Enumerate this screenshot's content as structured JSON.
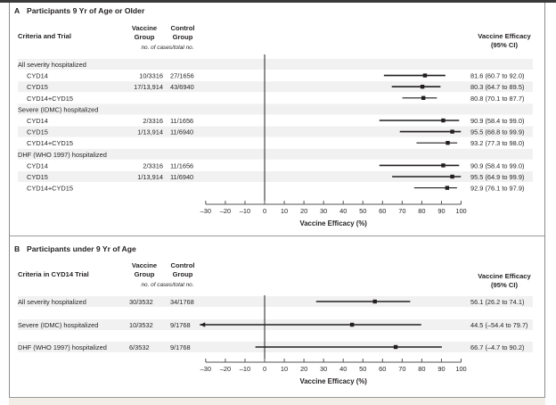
{
  "panel_a": {
    "letter": "A",
    "title": "Participants 9 Yr of Age or Older",
    "col_criteria": "Criteria and Trial",
    "col_vaccine": [
      "Vaccine",
      "Group"
    ],
    "col_control": [
      "Control",
      "Group"
    ],
    "col_subheader": "no. of cases/total no.",
    "col_efficacy": [
      "Vaccine Efficacy",
      "(95% CI)"
    ],
    "axis_title": "Vaccine Efficacy (%)"
  },
  "panel_b": {
    "letter": "B",
    "title": "Participants under 9 Yr of Age",
    "col_criteria": "Criteria in CYD14 Trial",
    "col_vaccine": [
      "Vaccine",
      "Group"
    ],
    "col_control": [
      "Control",
      "Group"
    ],
    "col_subheader": "no. of cases/total no.",
    "col_efficacy": [
      "Vaccine Efficacy",
      "(95% CI)"
    ],
    "axis_title": "Vaccine Efficacy (%)"
  },
  "chart_data": [
    {
      "type": "forest",
      "title": "A  Participants 9 Yr of Age or Older",
      "xlabel": "Vaccine Efficacy (%)",
      "xlim": [
        -30,
        100
      ],
      "xticks": [
        -30,
        -20,
        -10,
        0,
        10,
        20,
        30,
        40,
        50,
        60,
        70,
        80,
        90,
        100
      ],
      "reference_line": 0,
      "rows": [
        {
          "label": "All severity hospitalized",
          "group": true,
          "shaded": true
        },
        {
          "label": "CYD14",
          "vaccine": "10/3316",
          "control": "27/1656",
          "estimate": 81.6,
          "lower": 60.7,
          "upper": 92.0,
          "text": "81.6 (60.7 to 92.0)",
          "shaded": false
        },
        {
          "label": "CYD15",
          "vaccine": "17/13,914",
          "control": "43/6940",
          "estimate": 80.3,
          "lower": 64.7,
          "upper": 89.5,
          "text": "80.3 (64.7 to 89.5)",
          "shaded": true
        },
        {
          "label": "CYD14+CYD15",
          "vaccine": "",
          "control": "",
          "estimate": 80.8,
          "lower": 70.1,
          "upper": 87.7,
          "text": "80.8 (70.1 to 87.7)",
          "shaded": false
        },
        {
          "label": "Severe (IDMC) hospitalized",
          "group": true,
          "shaded": true
        },
        {
          "label": "CYD14",
          "vaccine": "2/3316",
          "control": "11/1656",
          "estimate": 90.9,
          "lower": 58.4,
          "upper": 99.0,
          "text": "90.9 (58.4 to 99.0)",
          "shaded": false
        },
        {
          "label": "CYD15",
          "vaccine": "1/13,914",
          "control": "11/6940",
          "estimate": 95.5,
          "lower": 68.8,
          "upper": 99.9,
          "text": "95.5 (68.8 to 99.9)",
          "shaded": true
        },
        {
          "label": "CYD14+CYD15",
          "vaccine": "",
          "control": "",
          "estimate": 93.2,
          "lower": 77.3,
          "upper": 98.0,
          "text": "93.2 (77.3 to 98.0)",
          "shaded": false
        },
        {
          "label": "DHF (WHO 1997) hospitalized",
          "group": true,
          "shaded": true
        },
        {
          "label": "CYD14",
          "vaccine": "2/3316",
          "control": "11/1656",
          "estimate": 90.9,
          "lower": 58.4,
          "upper": 99.0,
          "text": "90.9 (58.4 to 99.0)",
          "shaded": false
        },
        {
          "label": "CYD15",
          "vaccine": "1/13,914",
          "control": "11/6940",
          "estimate": 95.5,
          "lower": 64.9,
          "upper": 99.9,
          "text": "95.5 (64.9 to 99.9)",
          "shaded": true
        },
        {
          "label": "CYD14+CYD15",
          "vaccine": "",
          "control": "",
          "estimate": 92.9,
          "lower": 76.1,
          "upper": 97.9,
          "text": "92.9 (76.1 to 97.9)",
          "shaded": false
        }
      ]
    },
    {
      "type": "forest",
      "title": "B  Participants under 9 Yr of Age",
      "xlabel": "Vaccine Efficacy (%)",
      "xlim": [
        -30,
        100
      ],
      "xticks": [
        -30,
        -20,
        -10,
        0,
        10,
        20,
        30,
        40,
        50,
        60,
        70,
        80,
        90,
        100
      ],
      "reference_line": 0,
      "rows": [
        {
          "label": "All severity hospitalized",
          "vaccine": "30/3532",
          "control": "34/1768",
          "estimate": 56.1,
          "lower": 26.2,
          "upper": 74.1,
          "text": "56.1 (26.2 to 74.1)",
          "shaded": true
        },
        {
          "label": "Severe (IDMC) hospitalized",
          "vaccine": "10/3532",
          "control": "9/1768",
          "estimate": 44.5,
          "lower": -54.4,
          "upper": 79.7,
          "text": "44.5 (–54.4 to 79.7)",
          "shaded": true,
          "lower_truncated": true
        },
        {
          "label": "DHF (WHO 1997) hospitalized",
          "vaccine": "6/3532",
          "control": "9/1768",
          "estimate": 66.7,
          "lower": -4.7,
          "upper": 90.2,
          "text": "66.7 (–4.7 to 90.2)",
          "shaded": true
        }
      ]
    }
  ]
}
